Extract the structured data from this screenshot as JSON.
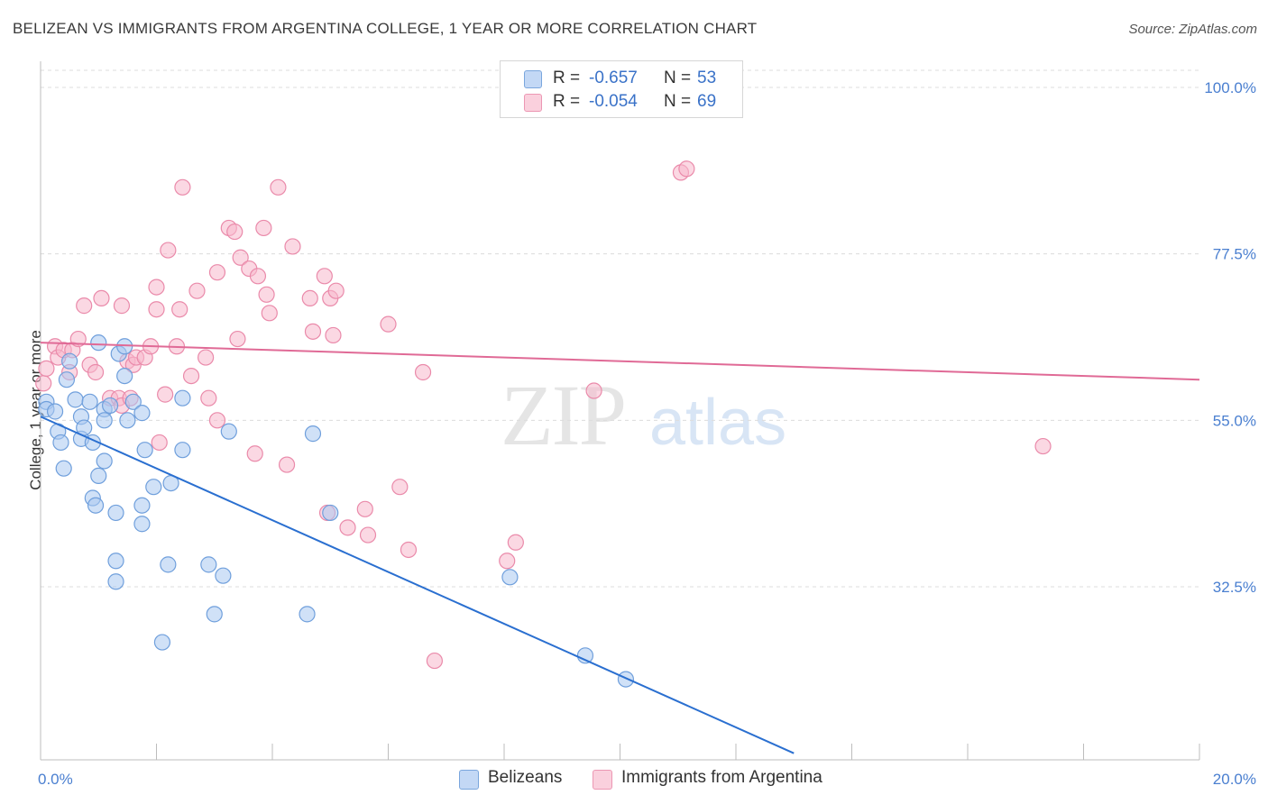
{
  "title": "BELIZEAN VS IMMIGRANTS FROM ARGENTINA COLLEGE, 1 YEAR OR MORE CORRELATION CHART",
  "source": "Source: ZipAtlas.com",
  "watermark": {
    "zip": "ZIP",
    "atlas": "atlas"
  },
  "legend": {
    "rows": [
      {
        "r_label": "R =",
        "r_value": "-0.657",
        "n_label": "N =",
        "n_value": "53",
        "color": "#aac8f0"
      },
      {
        "r_label": "R =",
        "r_value": "-0.054",
        "n_label": "N =",
        "n_value": "69",
        "color": "#f7b8cc"
      }
    ]
  },
  "bottom_legend": [
    {
      "label": "Belizeans",
      "color": "#aac8f0"
    },
    {
      "label": "Immigrants from Argentina",
      "color": "#f7b8cc"
    }
  ],
  "chart_data": {
    "type": "scatter",
    "title": "BELIZEAN VS IMMIGRANTS FROM ARGENTINA COLLEGE, 1 YEAR OR MORE CORRELATION CHART",
    "xlabel": "",
    "ylabel": "College, 1 year or more",
    "xlim": [
      0,
      20
    ],
    "ylim": [
      10,
      104
    ],
    "x_tick_labels": [
      "0.0%",
      "20.0%"
    ],
    "y_ticks": [
      32.5,
      55.0,
      77.5,
      100.0
    ],
    "y_tick_labels": [
      "32.5%",
      "55.0%",
      "77.5%",
      "100.0%"
    ],
    "grid": true,
    "legend_position": "top-center",
    "series": [
      {
        "name": "Belizeans",
        "color": "#aac8f0",
        "stroke": "#6f9fdc",
        "line_color": "#2a6fd0",
        "trend": [
          [
            0,
            55.5
          ],
          [
            13,
            10
          ]
        ],
        "points": [
          [
            0.1,
            57.5
          ],
          [
            0.1,
            56.5
          ],
          [
            0.25,
            56.2
          ],
          [
            0.3,
            53.5
          ],
          [
            0.35,
            52.0
          ],
          [
            0.4,
            48.5
          ],
          [
            0.45,
            60.5
          ],
          [
            0.5,
            63.0
          ],
          [
            0.6,
            57.8
          ],
          [
            0.7,
            55.5
          ],
          [
            0.7,
            52.5
          ],
          [
            0.75,
            54.0
          ],
          [
            0.85,
            57.5
          ],
          [
            0.9,
            52.0
          ],
          [
            0.9,
            44.5
          ],
          [
            0.95,
            43.5
          ],
          [
            1.0,
            65.5
          ],
          [
            1.0,
            47.5
          ],
          [
            1.1,
            56.5
          ],
          [
            1.1,
            55.0
          ],
          [
            1.1,
            49.5
          ],
          [
            1.2,
            57.0
          ],
          [
            1.3,
            42.5
          ],
          [
            1.3,
            36.0
          ],
          [
            1.3,
            33.2
          ],
          [
            1.35,
            64.0
          ],
          [
            1.45,
            65.0
          ],
          [
            1.45,
            61.0
          ],
          [
            1.5,
            55.0
          ],
          [
            1.6,
            57.5
          ],
          [
            1.75,
            56.0
          ],
          [
            1.75,
            43.5
          ],
          [
            1.75,
            41.0
          ],
          [
            1.8,
            51.0
          ],
          [
            1.95,
            46.0
          ],
          [
            2.1,
            25.0
          ],
          [
            2.2,
            35.5
          ],
          [
            2.25,
            46.5
          ],
          [
            2.45,
            51.0
          ],
          [
            2.45,
            58.0
          ],
          [
            2.9,
            35.5
          ],
          [
            3.0,
            28.8
          ],
          [
            3.15,
            34.0
          ],
          [
            3.25,
            53.5
          ],
          [
            4.6,
            28.8
          ],
          [
            4.7,
            53.2
          ],
          [
            5.0,
            42.5
          ],
          [
            8.1,
            33.8
          ],
          [
            9.4,
            23.2
          ],
          [
            10.1,
            20.0
          ]
        ]
      },
      {
        "name": "Immigrants from Argentina",
        "color": "#f7b8cc",
        "stroke": "#ea8aaa",
        "line_color": "#e06a96",
        "trend": [
          [
            0,
            65.5
          ],
          [
            20,
            60.5
          ]
        ],
        "points": [
          [
            0.05,
            60.0
          ],
          [
            0.1,
            62.0
          ],
          [
            0.25,
            65.0
          ],
          [
            0.3,
            63.5
          ],
          [
            0.4,
            64.5
          ],
          [
            0.5,
            61.5
          ],
          [
            0.55,
            64.5
          ],
          [
            0.65,
            66.0
          ],
          [
            0.75,
            70.5
          ],
          [
            0.85,
            62.5
          ],
          [
            0.95,
            61.5
          ],
          [
            1.05,
            71.5
          ],
          [
            1.2,
            58.0
          ],
          [
            1.35,
            58.0
          ],
          [
            1.4,
            70.5
          ],
          [
            1.4,
            57.0
          ],
          [
            1.5,
            63.0
          ],
          [
            1.55,
            58.0
          ],
          [
            1.6,
            62.5
          ],
          [
            1.65,
            63.5
          ],
          [
            1.8,
            63.5
          ],
          [
            1.9,
            65.0
          ],
          [
            2.0,
            73.0
          ],
          [
            2.0,
            70.0
          ],
          [
            2.05,
            52.0
          ],
          [
            2.15,
            58.5
          ],
          [
            2.2,
            78.0
          ],
          [
            2.35,
            65.0
          ],
          [
            2.4,
            70.0
          ],
          [
            2.45,
            86.5
          ],
          [
            2.6,
            61.0
          ],
          [
            2.7,
            72.5
          ],
          [
            2.85,
            63.5
          ],
          [
            2.9,
            58.0
          ],
          [
            3.05,
            75.0
          ],
          [
            3.05,
            55.0
          ],
          [
            3.25,
            81.0
          ],
          [
            3.35,
            80.5
          ],
          [
            3.4,
            66.0
          ],
          [
            3.45,
            77.0
          ],
          [
            3.6,
            75.5
          ],
          [
            3.7,
            50.5
          ],
          [
            3.75,
            74.5
          ],
          [
            3.85,
            81.0
          ],
          [
            3.9,
            72.0
          ],
          [
            3.95,
            69.5
          ],
          [
            4.1,
            86.5
          ],
          [
            4.25,
            49.0
          ],
          [
            4.35,
            78.5
          ],
          [
            4.65,
            71.5
          ],
          [
            4.7,
            67.0
          ],
          [
            4.9,
            74.5
          ],
          [
            4.95,
            42.5
          ],
          [
            5.0,
            71.5
          ],
          [
            5.05,
            66.5
          ],
          [
            5.1,
            72.5
          ],
          [
            5.3,
            40.5
          ],
          [
            5.6,
            43.0
          ],
          [
            5.65,
            39.5
          ],
          [
            6.0,
            68.0
          ],
          [
            6.2,
            46.0
          ],
          [
            6.35,
            37.5
          ],
          [
            6.6,
            61.5
          ],
          [
            6.8,
            22.5
          ],
          [
            8.05,
            36.0
          ],
          [
            8.2,
            38.5
          ],
          [
            8.6,
            99.0
          ],
          [
            9.55,
            59.0
          ],
          [
            11.05,
            88.5
          ],
          [
            11.15,
            89.0
          ],
          [
            17.3,
            51.5
          ]
        ]
      }
    ]
  }
}
